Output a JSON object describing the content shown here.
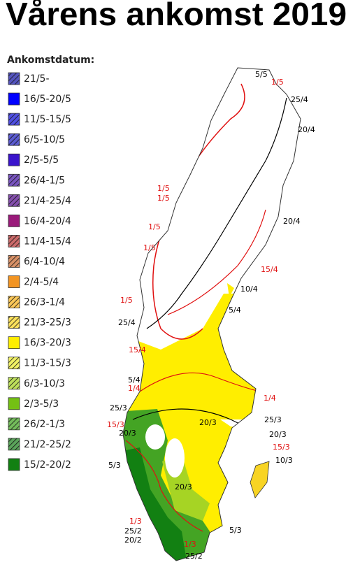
{
  "title": "Vårens ankomst 2019",
  "legend": {
    "title": "Ankomstdatum:",
    "items": [
      {
        "label": "21/5-",
        "color": "#1a1aa8",
        "hatched": true
      },
      {
        "label": "16/5-20/5",
        "color": "#0000ff",
        "hatched": false
      },
      {
        "label": "11/5-15/5",
        "color": "#1414d8",
        "hatched": true
      },
      {
        "label": "6/5-10/5",
        "color": "#2222c0",
        "hatched": true
      },
      {
        "label": "2/5-5/5",
        "color": "#3a14cc",
        "hatched": false
      },
      {
        "label": "26/4-1/5",
        "color": "#4a1aa8",
        "hatched": true
      },
      {
        "label": "21/4-25/4",
        "color": "#5a1490",
        "hatched": true
      },
      {
        "label": "16/4-20/4",
        "color": "#9a1a7a",
        "hatched": false
      },
      {
        "label": "11/4-15/4",
        "color": "#b83838",
        "hatched": true
      },
      {
        "label": "6/4-10/4",
        "color": "#c86a34",
        "hatched": true
      },
      {
        "label": "2/4-5/4",
        "color": "#f29422",
        "hatched": false
      },
      {
        "label": "26/3-1/4",
        "color": "#f8b420",
        "hatched": true
      },
      {
        "label": "21/3-25/3",
        "color": "#f8d424",
        "hatched": true
      },
      {
        "label": "16/3-20/3",
        "color": "#ffee00",
        "hatched": false
      },
      {
        "label": "11/3-15/3",
        "color": "#eaea30",
        "hatched": true
      },
      {
        "label": "6/3-10/3",
        "color": "#a6d424",
        "hatched": true
      },
      {
        "label": "2/3-5/3",
        "color": "#74c014",
        "hatched": false
      },
      {
        "label": "26/2-1/3",
        "color": "#44a424",
        "hatched": true
      },
      {
        "label": "21/2-25/2",
        "color": "#228422",
        "hatched": true
      },
      {
        "label": "15/2-20/2",
        "color": "#128012",
        "hatched": false
      }
    ]
  },
  "map_labels": [
    {
      "text": "5/5",
      "color": "#000000"
    },
    {
      "text": "1/5",
      "color": "#e01010"
    },
    {
      "text": "25/4",
      "color": "#000000"
    },
    {
      "text": "20/4",
      "color": "#000000"
    },
    {
      "text": "1/5",
      "color": "#e01010"
    },
    {
      "text": "1/5",
      "color": "#e01010"
    },
    {
      "text": "1/5",
      "color": "#e01010"
    },
    {
      "text": "20/4",
      "color": "#000000"
    },
    {
      "text": "1/5",
      "color": "#e01010"
    },
    {
      "text": "15/4",
      "color": "#e01010"
    },
    {
      "text": "10/4",
      "color": "#000000"
    },
    {
      "text": "1/5",
      "color": "#e01010"
    },
    {
      "text": "5/4",
      "color": "#000000"
    },
    {
      "text": "25/4",
      "color": "#000000"
    },
    {
      "text": "15/4",
      "color": "#e01010"
    },
    {
      "text": "5/4",
      "color": "#000000"
    },
    {
      "text": "1/4",
      "color": "#e01010"
    },
    {
      "text": "1/4",
      "color": "#e01010"
    },
    {
      "text": "25/3",
      "color": "#000000"
    },
    {
      "text": "25/3",
      "color": "#000000"
    },
    {
      "text": "15/3",
      "color": "#e01010"
    },
    {
      "text": "20/3",
      "color": "#000000"
    },
    {
      "text": "20/3",
      "color": "#000000"
    },
    {
      "text": "20/3",
      "color": "#000000"
    },
    {
      "text": "15/3",
      "color": "#e01010"
    },
    {
      "text": "10/3",
      "color": "#000000"
    },
    {
      "text": "5/3",
      "color": "#000000"
    },
    {
      "text": "20/3",
      "color": "#000000"
    },
    {
      "text": "1/3",
      "color": "#e01010"
    },
    {
      "text": "5/3",
      "color": "#000000"
    },
    {
      "text": "25/2",
      "color": "#000000"
    },
    {
      "text": "20/2",
      "color": "#000000"
    },
    {
      "text": "1/3",
      "color": "#e01010"
    },
    {
      "text": "25/2",
      "color": "#000000"
    }
  ]
}
